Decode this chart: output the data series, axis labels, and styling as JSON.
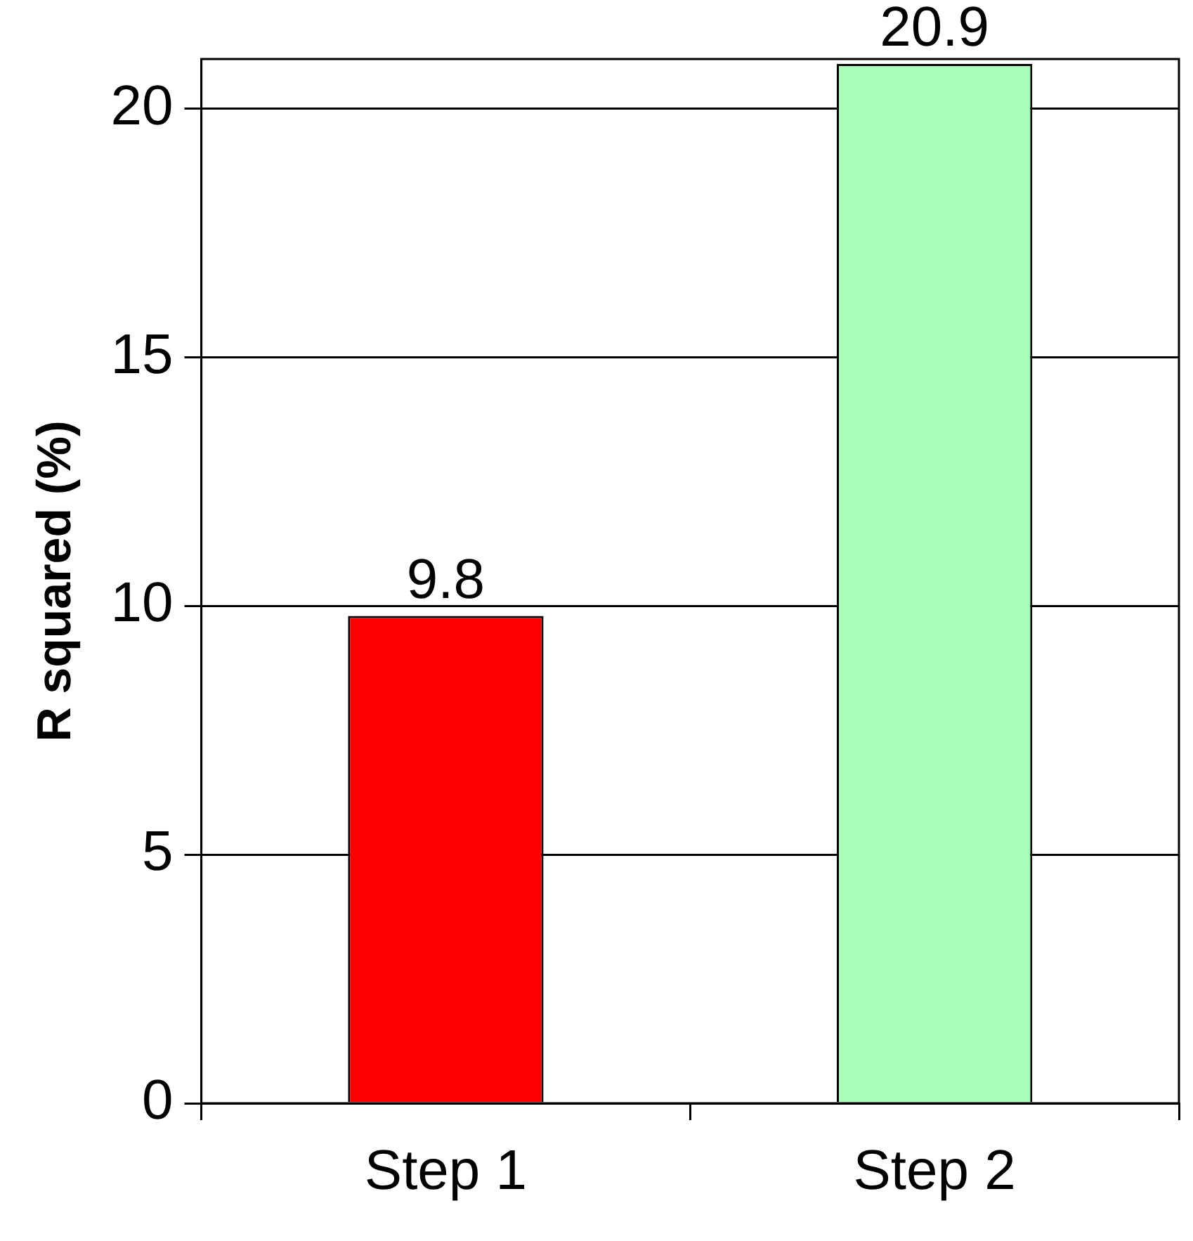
{
  "chart_data": {
    "type": "bar",
    "ylabel": "R squared (%)",
    "categories": [
      "Step 1",
      "Step 2"
    ],
    "values": [
      9.8,
      20.9
    ],
    "colors": [
      "#ff0000",
      "#a8ffb8"
    ],
    "ylim": [
      0,
      21
    ],
    "yticks": [
      0,
      5,
      10,
      15,
      20
    ],
    "grid": "y",
    "data_labels": true,
    "legend": false
  }
}
